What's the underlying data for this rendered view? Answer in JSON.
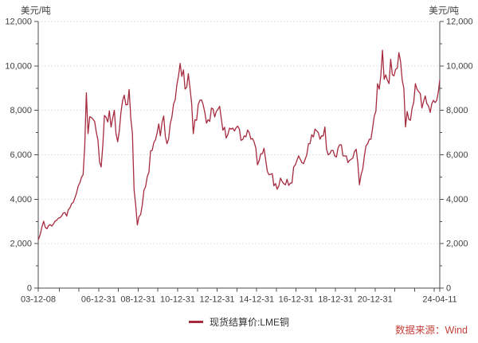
{
  "footer": {
    "source_label": "数据来源：Wind"
  },
  "colors": {
    "line": "#A62B3F",
    "axis": "#4d4d4d",
    "grid": "#d9d9d9",
    "tick_text": "#3f3f3f",
    "source_text": "#C8423C"
  },
  "chart_data": {
    "type": "line",
    "legend_position": "bottom-center",
    "grid": "horizontal-dotted",
    "x_start_date": "2003-12-08",
    "x_end_date": "2024-04-11",
    "y_axis": {
      "min": 0,
      "max": 12000,
      "major_step": 2000,
      "minor_step": 1000,
      "unit": "美元/吨"
    },
    "x_ticks": [
      {
        "label": "03-12-08",
        "date": "2003-12-08"
      },
      {
        "label": "06-12-31",
        "date": "2006-12-31"
      },
      {
        "label": "08-12-31",
        "date": "2008-12-31"
      },
      {
        "label": "10-12-31",
        "date": "2010-12-31"
      },
      {
        "label": "12-12-31",
        "date": "2012-12-31"
      },
      {
        "label": "14-12-31",
        "date": "2014-12-31"
      },
      {
        "label": "16-12-31",
        "date": "2016-12-31"
      },
      {
        "label": "18-12-31",
        "date": "2018-12-31"
      },
      {
        "label": "20-12-31",
        "date": "2020-12-31"
      },
      {
        "label": "24-04-11",
        "date": "2024-04-11"
      }
    ],
    "x_minor_tick_dates": [
      "2004-12-31",
      "2005-12-31",
      "2007-12-31",
      "2009-12-31",
      "2011-12-31",
      "2013-12-31",
      "2015-12-31",
      "2017-12-31",
      "2019-12-31",
      "2021-12-31",
      "2022-12-31",
      "2023-12-31"
    ],
    "series": [
      {
        "name": "现货结算价:LME铜",
        "color": "#A62B3F",
        "first_point_date": "2003-12-08",
        "start_month": "2003-12",
        "frequency": "monthly",
        "values_monthly": [
          2171,
          2423,
          2760,
          3010,
          2740,
          2670,
          2810,
          2858,
          2792,
          2890,
          3012,
          3060,
          3147,
          3170,
          3254,
          3380,
          3395,
          3240,
          3524,
          3614,
          3798,
          3858,
          4060,
          4269,
          4584,
          4734,
          4982,
          5102,
          6398,
          8788,
          6950,
          7712,
          7680,
          7602,
          7500,
          7030,
          6672,
          5668,
          5452,
          6452,
          7766,
          7682,
          7476,
          7974,
          7248,
          7654,
          8002,
          6958,
          6588,
          7061,
          7898,
          8439,
          8685,
          8245,
          8260,
          8940,
          7636,
          6976,
          4426,
          3716,
          2845,
          3221,
          3314,
          3750,
          4407,
          4569,
          5013,
          5216,
          6178,
          6196,
          6552,
          6676,
          6982,
          7386,
          6848,
          7462,
          7745,
          6838,
          6499,
          6721,
          7401,
          7709,
          8292,
          8470,
          9147,
          9555,
          10112,
          9530,
          9823,
          8959,
          9045,
          9650,
          8997,
          8300,
          6950,
          7581,
          7554,
          8258,
          8453,
          8470,
          8252,
          7902,
          7423,
          7584,
          7503,
          8102,
          8063,
          7702,
          7952,
          8047,
          8181,
          7648,
          7104,
          7242,
          6752,
          6905,
          7199,
          7152,
          7203,
          7071,
          7215,
          7291,
          7149,
          6651,
          6684,
          6852,
          6806,
          7113,
          6998,
          6703,
          6732,
          6577,
          6300,
          5548,
          5722,
          6048,
          6052,
          6295,
          5762,
          5252,
          5101,
          5122,
          5151,
          4602,
          4702,
          4452,
          4599,
          4952,
          4801,
          4699,
          4648,
          4901,
          4621,
          4722,
          4731,
          5451,
          5548,
          5749,
          5952,
          5801,
          5649,
          5601,
          5799,
          6001,
          6499,
          6501,
          6902,
          6801,
          7157,
          7080,
          7001,
          6702,
          6851,
          6849,
          7252,
          6249,
          5998,
          6051,
          6202,
          6195,
          5949,
          5901,
          6302,
          6452,
          6448,
          5952,
          5948,
          5951,
          5648,
          5751,
          5802,
          5851,
          6149,
          6251,
          5648,
          4651,
          5101,
          5352,
          5951,
          6401,
          6502,
          6702,
          6699,
          7199,
          7749,
          7951,
          9199,
          8952,
          9551,
          10702,
          9399,
          9601,
          9352,
          9201,
          10301,
          9601,
          9549,
          9851,
          9899,
          10598,
          10199,
          9349,
          8999,
          7249,
          7951,
          7599,
          7551,
          8101,
          8349,
          9199,
          8951,
          8849,
          8751,
          8099,
          8401,
          8649,
          8299,
          8201,
          7901,
          8301,
          8449,
          8349,
          8451,
          8851,
          9365
        ]
      }
    ]
  }
}
